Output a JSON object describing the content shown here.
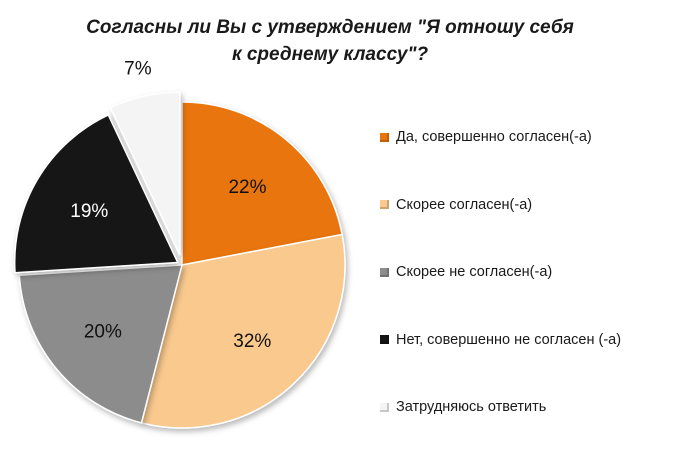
{
  "chart_data": {
    "type": "pie",
    "title_lines": [
      "Согласны ли Вы с утверждением \"Я отношу себя",
      "к среднему классу\"?"
    ],
    "slices": [
      {
        "label": "Да, совершенно согласен(-а)",
        "value": 22,
        "value_label": "22%",
        "color": "#e8740c"
      },
      {
        "label": "Скорее согласен(-а)",
        "value": 32,
        "value_label": "32%",
        "color": "#f9c98e"
      },
      {
        "label": "Скорее не согласен(-а)",
        "value": 20,
        "value_label": "20%",
        "color": "#8c8c8c"
      },
      {
        "label": "Нет, совершенно не согласен (-а)",
        "value": 19,
        "value_label": "19%",
        "color": "#151515"
      },
      {
        "label": "Затрудняюсь ответить",
        "value": 7,
        "value_label": "7%",
        "color": "#f4f4f4"
      }
    ],
    "legend_position": "right"
  }
}
